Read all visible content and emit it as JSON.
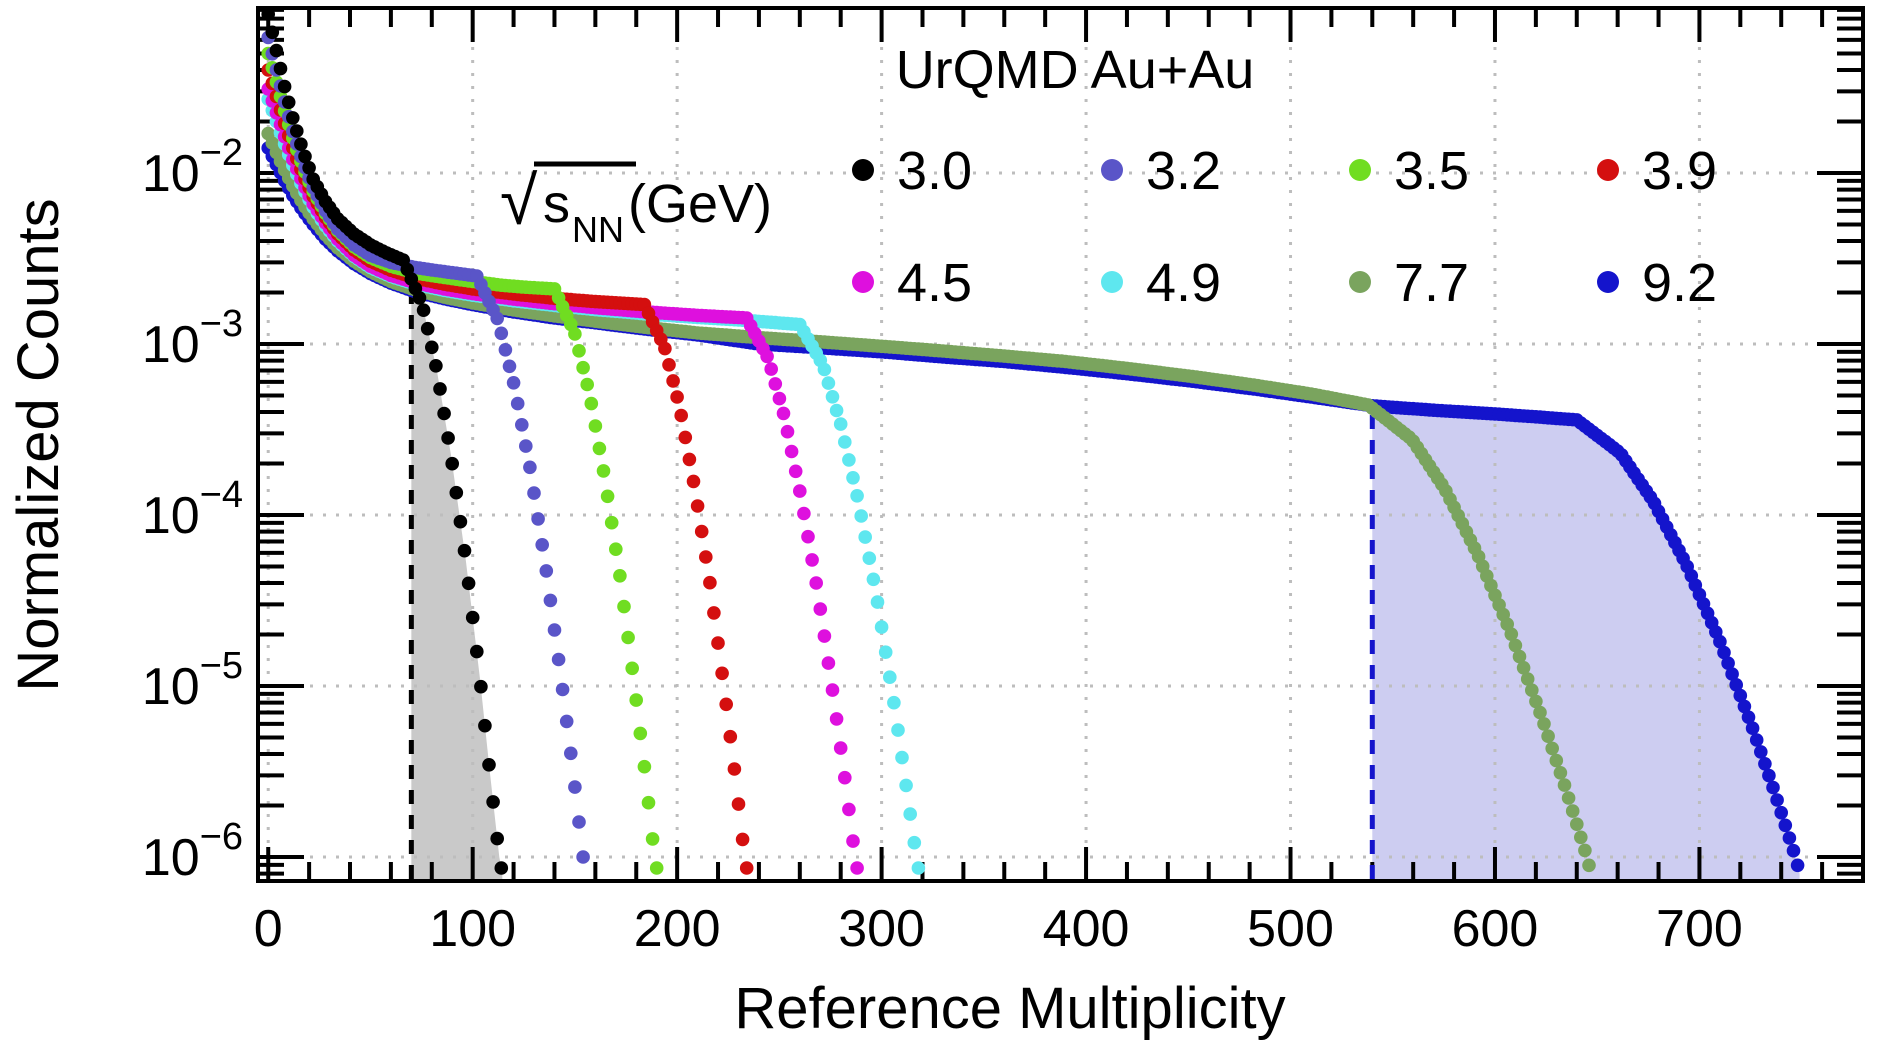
{
  "chart_data": {
    "type": "scatter",
    "title": "UrQMD Au+Au",
    "xlabel": "Reference Multiplicity",
    "ylabel": "Normalized Counts",
    "x_axis": {
      "major_ticks": [
        0,
        100,
        200,
        300,
        400,
        500,
        600,
        700
      ],
      "minor_step": 20,
      "range": [
        -5,
        780
      ]
    },
    "y_axis": {
      "scale": "log",
      "decade_exponents": [
        -2,
        -3,
        -4,
        -5,
        -6
      ],
      "range": [
        7.2e-07,
        0.092
      ],
      "grid": "dotted"
    },
    "legend": {
      "title": "UrQMD Au+Au",
      "energy": {
        "radical": "√",
        "symbol": "s",
        "subscript": "NN",
        "unit": " (GeV)"
      },
      "rows": 2,
      "columns": 4
    },
    "grid_color": "#bdbdbd",
    "regions": [
      {
        "name": "centrality-band-3.0",
        "series": "3.0",
        "x_from": 70,
        "color": "#c9c9c9"
      },
      {
        "name": "centrality-band-9.2",
        "series": "9.2",
        "x_from": 540,
        "color": "#cdcdf1"
      }
    ],
    "cut_lines": [
      {
        "name": "cut-3.0",
        "x": 70,
        "series": "3.0",
        "color": "#000000",
        "style": "dashed"
      },
      {
        "name": "cut-9.2",
        "x": 540,
        "series": "9.2",
        "color": "#1414cc",
        "style": "dashed"
      }
    ],
    "series": [
      {
        "name": "3.0",
        "color": "#000000",
        "points": [
          [
            0,
            0.085
          ],
          [
            4,
            0.052
          ],
          [
            8,
            0.032
          ],
          [
            12,
            0.021
          ],
          [
            17,
            0.0135
          ],
          [
            22,
            0.0092
          ],
          [
            28,
            0.0068
          ],
          [
            34,
            0.0054
          ],
          [
            42,
            0.0044
          ],
          [
            50,
            0.0038
          ],
          [
            58,
            0.0034
          ],
          [
            66,
            0.0031
          ],
          [
            75.4,
            0.0017
          ],
          [
            82.5,
            0.0007
          ],
          [
            89.5,
            0.00022
          ],
          [
            96.6,
            5.5e-05
          ],
          [
            103.6,
            1.1e-05
          ],
          [
            108.3,
            3.2e-06
          ],
          [
            113,
            1e-06
          ],
          [
            114.5,
            8e-07
          ]
        ]
      },
      {
        "name": "3.2",
        "color": "#5a55c8",
        "points": [
          [
            0,
            0.062
          ],
          [
            4,
            0.04
          ],
          [
            8,
            0.026
          ],
          [
            12,
            0.0175
          ],
          [
            17,
            0.0115
          ],
          [
            22,
            0.0082
          ],
          [
            28,
            0.006
          ],
          [
            34,
            0.0047
          ],
          [
            42,
            0.0038
          ],
          [
            50,
            0.0033
          ],
          [
            60,
            0.003
          ],
          [
            72,
            0.0028
          ],
          [
            86,
            0.00265
          ],
          [
            102,
            0.0025
          ],
          [
            112.4,
            0.00138
          ],
          [
            120.2,
            0.00058
          ],
          [
            128,
            0.00019
          ],
          [
            135.8,
            4.9e-05
          ],
          [
            143.6,
            1.04e-05
          ],
          [
            148.8,
            3.4e-06
          ],
          [
            154,
            1e-06
          ],
          [
            155.5,
            8e-07
          ]
        ]
      },
      {
        "name": "3.5",
        "color": "#70dd21",
        "points": [
          [
            0,
            0.05
          ],
          [
            4,
            0.034
          ],
          [
            8,
            0.023
          ],
          [
            12,
            0.016
          ],
          [
            17,
            0.0108
          ],
          [
            22,
            0.0078
          ],
          [
            28,
            0.0058
          ],
          [
            34,
            0.0046
          ],
          [
            42,
            0.0037
          ],
          [
            50,
            0.0032
          ],
          [
            60,
            0.00285
          ],
          [
            72,
            0.0026
          ],
          [
            86,
            0.00245
          ],
          [
            100,
            0.00232
          ],
          [
            115,
            0.0022
          ],
          [
            128,
            0.00214
          ],
          [
            140,
            0.0021
          ],
          [
            149.8,
            0.00117
          ],
          [
            157.2,
            0.000506
          ],
          [
            164.5,
            0.000168
          ],
          [
            171.9,
            4.5e-05
          ],
          [
            179.2,
            9.9e-06
          ],
          [
            184.1,
            3.3e-06
          ],
          [
            189,
            1e-06
          ],
          [
            190.5,
            8e-07
          ]
        ]
      },
      {
        "name": "3.9",
        "color": "#d40f0f",
        "points": [
          [
            0,
            0.04
          ],
          [
            4,
            0.028
          ],
          [
            8,
            0.0195
          ],
          [
            12,
            0.014
          ],
          [
            17,
            0.0098
          ],
          [
            22,
            0.0073
          ],
          [
            28,
            0.0055
          ],
          [
            34,
            0.0044
          ],
          [
            42,
            0.00355
          ],
          [
            50,
            0.00305
          ],
          [
            60,
            0.0027
          ],
          [
            72,
            0.00243
          ],
          [
            86,
            0.00224
          ],
          [
            100,
            0.0021
          ],
          [
            120,
            0.00196
          ],
          [
            140,
            0.00185
          ],
          [
            160,
            0.00177
          ],
          [
            184,
            0.0017
          ],
          [
            193.8,
            0.00096
          ],
          [
            201.2,
            0.00043
          ],
          [
            208.5,
            0.000146
          ],
          [
            215.9,
            4.1e-05
          ],
          [
            223.2,
            9.3e-06
          ],
          [
            228.1,
            3.2e-06
          ],
          [
            233,
            1e-06
          ],
          [
            234.5,
            8e-07
          ]
        ]
      },
      {
        "name": "4.5",
        "color": "#de10de",
        "points": [
          [
            0,
            0.031
          ],
          [
            4,
            0.0225
          ],
          [
            8,
            0.0163
          ],
          [
            12,
            0.012
          ],
          [
            17,
            0.0087
          ],
          [
            22,
            0.0066
          ],
          [
            28,
            0.0051
          ],
          [
            34,
            0.0041
          ],
          [
            42,
            0.0033
          ],
          [
            50,
            0.00285
          ],
          [
            60,
            0.00252
          ],
          [
            72,
            0.00228
          ],
          [
            86,
            0.0021
          ],
          [
            100,
            0.00197
          ],
          [
            120,
            0.00183
          ],
          [
            140,
            0.00172
          ],
          [
            160,
            0.00163
          ],
          [
            185,
            0.00154
          ],
          [
            210,
            0.00147
          ],
          [
            234,
            0.00142
          ],
          [
            244.6,
            0.00082
          ],
          [
            252.6,
            0.00037
          ],
          [
            260.5,
            0.000129
          ],
          [
            268.5,
            3.7e-05
          ],
          [
            276.4,
            8.8e-06
          ],
          [
            281.7,
            3.1e-06
          ],
          [
            287,
            1e-06
          ],
          [
            288.5,
            8e-07
          ]
        ]
      },
      {
        "name": "4.9",
        "color": "#5ee7ef",
        "points": [
          [
            0,
            0.027
          ],
          [
            4,
            0.02
          ],
          [
            8,
            0.0148
          ],
          [
            12,
            0.0111
          ],
          [
            17,
            0.0082
          ],
          [
            22,
            0.0063
          ],
          [
            28,
            0.0049
          ],
          [
            34,
            0.004
          ],
          [
            42,
            0.00325
          ],
          [
            50,
            0.0028
          ],
          [
            60,
            0.00248
          ],
          [
            72,
            0.00224
          ],
          [
            86,
            0.00206
          ],
          [
            100,
            0.00193
          ],
          [
            120,
            0.00179
          ],
          [
            140,
            0.00168
          ],
          [
            160,
            0.00159
          ],
          [
            185,
            0.0015
          ],
          [
            210,
            0.00143
          ],
          [
            235,
            0.00137
          ],
          [
            260,
            0.0013
          ],
          [
            271.4,
            0.00075
          ],
          [
            280,
            0.00034
          ],
          [
            288.5,
            0.000122
          ],
          [
            297.1,
            3.6e-05
          ],
          [
            305.6,
            8.6e-06
          ],
          [
            311.3,
            3e-06
          ],
          [
            317,
            1e-06
          ],
          [
            318.5,
            8e-07
          ]
        ]
      },
      {
        "name": "7.7",
        "color": "#7aa45e",
        "points": [
          [
            0,
            0.017
          ],
          [
            4,
            0.0132
          ],
          [
            8,
            0.0104
          ],
          [
            12,
            0.0084
          ],
          [
            17,
            0.0066
          ],
          [
            22,
            0.0054
          ],
          [
            28,
            0.00435
          ],
          [
            34,
            0.00365
          ],
          [
            42,
            0.00305
          ],
          [
            50,
            0.00265
          ],
          [
            60,
            0.00232
          ],
          [
            72,
            0.00207
          ],
          [
            86,
            0.00188
          ],
          [
            100,
            0.00174
          ],
          [
            120,
            0.00158
          ],
          [
            140,
            0.00146
          ],
          [
            160,
            0.00136
          ],
          [
            185,
            0.00125
          ],
          [
            210,
            0.00116
          ],
          [
            240,
            0.00109
          ],
          [
            270,
            0.00103
          ],
          [
            300,
            0.00097
          ],
          [
            330,
            0.00091
          ],
          [
            360,
            0.00085
          ],
          [
            390,
            0.00079
          ],
          [
            420,
            0.00072
          ],
          [
            450,
            0.00065
          ],
          [
            480,
            0.00058
          ],
          [
            510,
            0.00051
          ],
          [
            538,
            0.00044
          ],
          [
            559.4,
            0.000277
          ],
          [
            575.5,
            0.000142
          ],
          [
            591.5,
            5.9e-05
          ],
          [
            607.6,
            2.07e-05
          ],
          [
            623.6,
            6.2e-06
          ],
          [
            634.3,
            2.57e-06
          ],
          [
            645,
            1e-06
          ],
          [
            647,
            8e-07
          ]
        ]
      },
      {
        "name": "9.2",
        "color": "#1414cc",
        "points": [
          [
            0,
            0.014
          ],
          [
            4,
            0.0112
          ],
          [
            8,
            0.009
          ],
          [
            12,
            0.0074
          ],
          [
            17,
            0.006
          ],
          [
            22,
            0.005
          ],
          [
            28,
            0.0041
          ],
          [
            34,
            0.0035
          ],
          [
            42,
            0.00295
          ],
          [
            50,
            0.00258
          ],
          [
            60,
            0.00227
          ],
          [
            72,
            0.00202
          ],
          [
            86,
            0.00184
          ],
          [
            100,
            0.0017
          ],
          [
            120,
            0.00154
          ],
          [
            140,
            0.00142
          ],
          [
            160,
            0.00133
          ],
          [
            185,
            0.00122
          ],
          [
            210,
            0.00113
          ],
          [
            240,
            0.001
          ],
          [
            270,
            0.00095
          ],
          [
            300,
            0.0009
          ],
          [
            330,
            0.00084
          ],
          [
            360,
            0.00079
          ],
          [
            390,
            0.00073
          ],
          [
            420,
            0.00067
          ],
          [
            450,
            0.00061
          ],
          [
            480,
            0.00055
          ],
          [
            510,
            0.00049
          ],
          [
            540,
            0.000435
          ],
          [
            570,
            0.00041
          ],
          [
            600,
            0.00039
          ],
          [
            620,
            0.000375
          ],
          [
            640,
            0.00036
          ],
          [
            661.4,
            0.00023
          ],
          [
            677.5,
            0.00012
          ],
          [
            693.5,
            5.16e-05
          ],
          [
            709.6,
            1.87e-05
          ],
          [
            725.6,
            5.85e-06
          ],
          [
            736.3,
            2.49e-06
          ],
          [
            747,
            1e-06
          ],
          [
            749,
            8e-07
          ]
        ]
      }
    ]
  }
}
